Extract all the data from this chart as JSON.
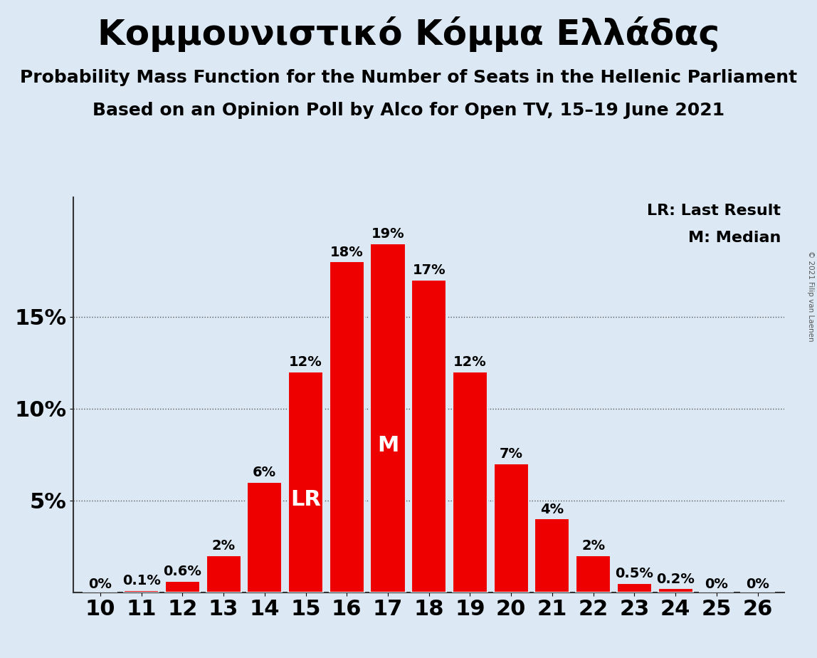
{
  "title": "Κομμουνιστικό Κόμμα Ελλάδας",
  "subtitle1": "Probability Mass Function for the Number of Seats in the Hellenic Parliament",
  "subtitle2": "Based on an Opinion Poll by Alco for Open TV, 15–19 June 2021",
  "copyright": "© 2021 Filip van Laenen",
  "categories": [
    10,
    11,
    12,
    13,
    14,
    15,
    16,
    17,
    18,
    19,
    20,
    21,
    22,
    23,
    24,
    25,
    26
  ],
  "values": [
    0.0,
    0.1,
    0.6,
    2.0,
    6.0,
    12.0,
    18.0,
    19.0,
    17.0,
    12.0,
    7.0,
    4.0,
    2.0,
    0.5,
    0.2,
    0.0,
    0.0
  ],
  "labels": [
    "0%",
    "0.1%",
    "0.6%",
    "2%",
    "6%",
    "12%",
    "18%",
    "19%",
    "17%",
    "12%",
    "7%",
    "4%",
    "2%",
    "0.5%",
    "0.2%",
    "0%",
    "0%"
  ],
  "bar_color": "#ee0000",
  "background_color": "#dce9f5",
  "text_color": "#000000",
  "lr_seat": 15,
  "median_seat": 17,
  "ylim_max": 21.5,
  "yticks": [
    5,
    10,
    15
  ],
  "ytick_labels": [
    "5%",
    "10%",
    "15%"
  ],
  "title_fontsize": 36,
  "subtitle_fontsize": 18,
  "axis_fontsize": 22,
  "bar_label_fontsize": 14,
  "annotation_fontsize": 22,
  "legend_fontsize": 16
}
